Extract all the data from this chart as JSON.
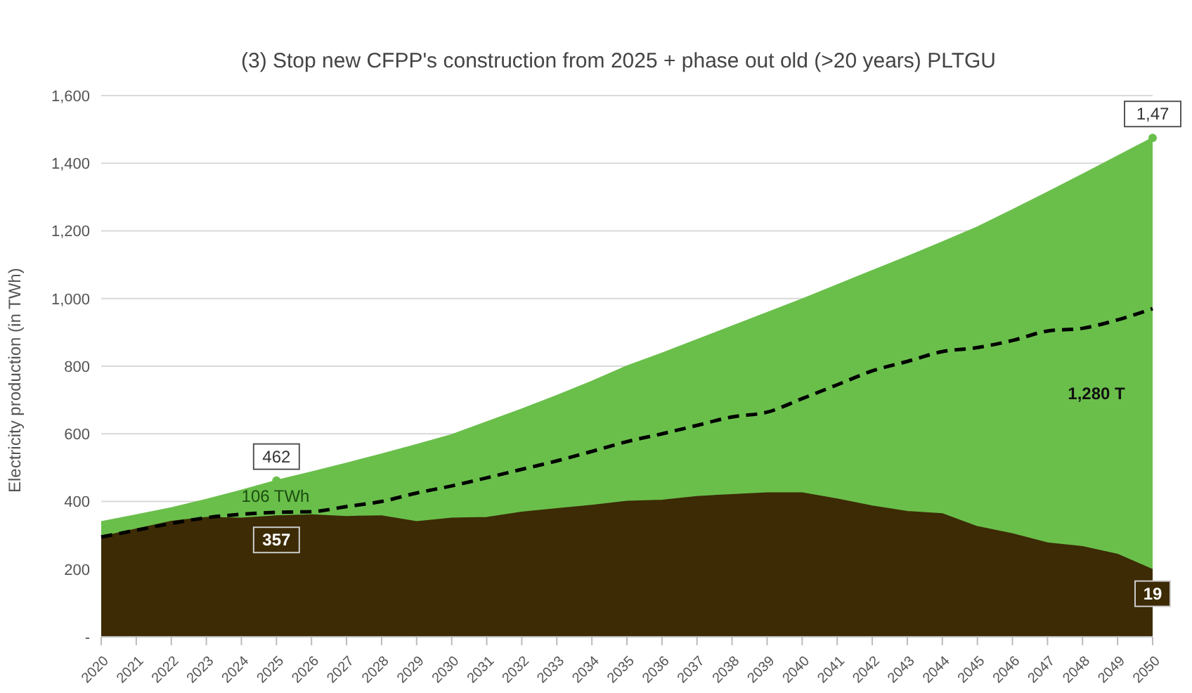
{
  "chart_data": {
    "type": "area",
    "title": "(3) Stop new CFPP's construction from 2025 + phase out old (>20 years) PLTGU",
    "ylabel": "Electricity production (in TWh)",
    "categories": [
      "2020",
      "2021",
      "2022",
      "2023",
      "2024",
      "2025",
      "2026",
      "2027",
      "2028",
      "2029",
      "2030",
      "2031",
      "2032",
      "2033",
      "2034",
      "2035",
      "2036",
      "2037",
      "2038",
      "2039",
      "2040",
      "2041",
      "2042",
      "2043",
      "2044",
      "2045",
      "2046",
      "2047",
      "2048",
      "2049",
      "2050"
    ],
    "series": [
      {
        "color": "#6abf4b",
        "values": [
          340,
          360,
          381,
          406,
          433,
          462,
          487,
          513,
          540,
          568,
          597,
          635,
          673,
          713,
          755,
          800,
          838,
          878,
          918,
          958,
          998,
          1040,
          1082,
          1124,
          1167,
          1211,
          1262,
          1314,
          1367,
          1421,
          1475
        ]
      },
      {
        "color": "#3d2b05",
        "values": [
          295,
          318,
          341,
          352,
          350,
          357,
          360,
          355,
          357,
          340,
          350,
          352,
          368,
          378,
          388,
          400,
          403,
          414,
          420,
          425,
          425,
          407,
          386,
          370,
          363,
          325,
          304,
          277,
          266,
          243,
          198
        ]
      },
      {
        "type": "line",
        "color": "#000000",
        "line_style": "dashed",
        "values": [
          295,
          315,
          335,
          352,
          362,
          368,
          370,
          385,
          400,
          425,
          446,
          470,
          495,
          520,
          548,
          577,
          600,
          625,
          650,
          664,
          704,
          745,
          786,
          814,
          843,
          855,
          876,
          904,
          912,
          937,
          970
        ]
      }
    ],
    "ylim": [
      0,
      1600
    ],
    "yticks": [
      {
        "value": 0,
        "label": "-"
      },
      200,
      400,
      600,
      800,
      {
        "value": 1000,
        "label": "1,000"
      },
      {
        "value": 1200,
        "label": "1,200"
      },
      {
        "value": 1400,
        "label": "1,400"
      },
      {
        "value": 1600,
        "label": "1,600"
      }
    ],
    "grid": "y",
    "legend": false,
    "annotations": [
      {
        "text": "462",
        "x": "2025",
        "y": 462
      },
      {
        "text": "357",
        "x": "2025",
        "y": 357
      },
      "106 TWh",
      {
        "text": "1,47",
        "x": "2050",
        "y": 1475
      },
      {
        "text": "19",
        "x": "2050",
        "y": 198
      },
      "1,280 T"
    ]
  }
}
